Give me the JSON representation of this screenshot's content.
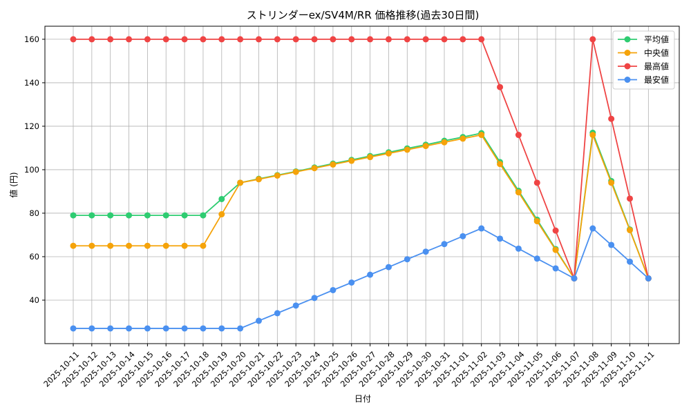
{
  "chart_data": {
    "type": "line",
    "title": "ストリンダーex/SV4M/RR 価格推移(過去30日間)",
    "xlabel": "日付",
    "ylabel": "値 (円)",
    "x": [
      "2025-10-11",
      "2025-10-12",
      "2025-10-13",
      "2025-10-14",
      "2025-10-15",
      "2025-10-16",
      "2025-10-17",
      "2025-10-18",
      "2025-10-19",
      "2025-10-20",
      "2025-10-21",
      "2025-10-22",
      "2025-10-23",
      "2025-10-24",
      "2025-10-25",
      "2025-10-26",
      "2025-10-27",
      "2025-10-28",
      "2025-10-29",
      "2025-10-30",
      "2025-10-31",
      "2025-11-01",
      "2025-11-02",
      "2025-11-03",
      "2025-11-04",
      "2025-11-05",
      "2025-11-06",
      "2025-11-07",
      "2025-11-08",
      "2025-11-09",
      "2025-11-10",
      "2025-11-11"
    ],
    "ylim": [
      20,
      166
    ],
    "yticks": [
      40,
      60,
      80,
      100,
      120,
      140,
      160
    ],
    "grid": true,
    "legend_position": "top-right",
    "series": [
      {
        "name": "平均値",
        "color": "#2ecc71",
        "values": [
          79,
          79,
          79,
          79,
          79,
          79,
          79,
          79,
          86.5,
          94,
          95.8,
          97.5,
          99.2,
          101,
          102.8,
          104.5,
          106.3,
          108,
          109.8,
          111.5,
          113.3,
          115,
          116.8,
          103.5,
          90.3,
          77,
          63.5,
          50,
          117,
          94.8,
          72.5,
          50
        ]
      },
      {
        "name": "中央値",
        "color": "#f5a30a",
        "values": [
          65,
          65,
          65,
          65,
          65,
          65,
          65,
          65,
          79.5,
          94,
          95.6,
          97.3,
          99,
          100.7,
          102.4,
          104.1,
          105.8,
          107.5,
          109.2,
          110.9,
          112.6,
          114.3,
          116,
          102.6,
          89.6,
          76.3,
          63.1,
          50,
          116,
          94,
          72.2,
          50
        ]
      },
      {
        "name": "最高値",
        "color": "#ef4444",
        "values": [
          160,
          160,
          160,
          160,
          160,
          160,
          160,
          160,
          160,
          160,
          160,
          160,
          160,
          160,
          160,
          160,
          160,
          160,
          160,
          160,
          160,
          160,
          160,
          138,
          116,
          94,
          72,
          50,
          160,
          123.4,
          86.7,
          50
        ]
      },
      {
        "name": "最安値",
        "color": "#4a90f0",
        "values": [
          27,
          27,
          27,
          27,
          27,
          27,
          27,
          27,
          27,
          27,
          30.5,
          34,
          37.5,
          41,
          44.6,
          48.1,
          51.7,
          55.2,
          58.8,
          62.3,
          65.8,
          69.4,
          73,
          68.3,
          63.7,
          59.1,
          54.6,
          50,
          73,
          65.4,
          57.7,
          50
        ]
      }
    ]
  }
}
